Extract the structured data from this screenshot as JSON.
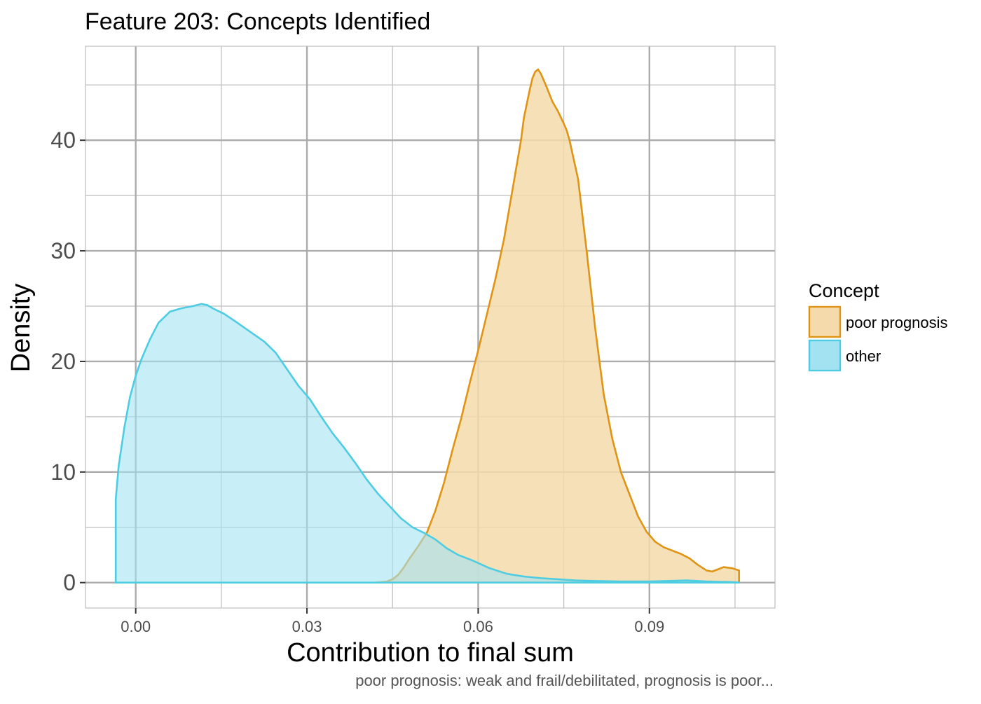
{
  "chart_data": {
    "type": "area",
    "title": "Feature 203: Concepts Identified",
    "subtitle": "",
    "caption": "poor prognosis: weak and frail/debilitated, prognosis is poor...",
    "xlabel": "Contribution to final sum",
    "ylabel": "Density",
    "xlim": [
      -0.0088,
      0.112
    ],
    "ylim": [
      -2.3,
      48.5
    ],
    "x_ticks": [
      {
        "value": 0.0,
        "label": "0.00"
      },
      {
        "value": 0.03,
        "label": "0.03"
      },
      {
        "value": 0.06,
        "label": "0.06"
      },
      {
        "value": 0.09,
        "label": "0.09"
      }
    ],
    "x_minor_ticks": [
      0.015,
      0.045,
      0.075,
      0.105
    ],
    "y_ticks": [
      {
        "value": 0,
        "label": "0"
      },
      {
        "value": 10,
        "label": "10"
      },
      {
        "value": 20,
        "label": "20"
      },
      {
        "value": 30,
        "label": "30"
      },
      {
        "value": 40,
        "label": "40"
      }
    ],
    "y_minor_ticks": [
      5,
      15,
      25,
      35,
      45
    ],
    "grid": true,
    "legend": {
      "title": "Concept",
      "position": "right"
    },
    "series": [
      {
        "name": "poor prognosis",
        "line_color": "#E09415",
        "fill_color": "#F5DBAB",
        "fill_opacity": 0.85,
        "points": [
          [
            0.042,
            0.0
          ],
          [
            0.044,
            0.1
          ],
          [
            0.045,
            0.3
          ],
          [
            0.046,
            0.7
          ],
          [
            0.047,
            1.4
          ],
          [
            0.048,
            2.2
          ],
          [
            0.0495,
            3.3
          ],
          [
            0.051,
            4.5
          ],
          [
            0.0525,
            6.5
          ],
          [
            0.054,
            9.0
          ],
          [
            0.0555,
            12.0
          ],
          [
            0.057,
            14.8
          ],
          [
            0.0585,
            18.0
          ],
          [
            0.06,
            21.0
          ],
          [
            0.0615,
            24.2
          ],
          [
            0.063,
            27.4
          ],
          [
            0.0645,
            31.0
          ],
          [
            0.066,
            35.5
          ],
          [
            0.0675,
            40.0
          ],
          [
            0.068,
            42.0
          ],
          [
            0.069,
            44.5
          ],
          [
            0.0695,
            45.6
          ],
          [
            0.07,
            46.2
          ],
          [
            0.0705,
            46.4
          ],
          [
            0.071,
            46.0
          ],
          [
            0.072,
            44.8
          ],
          [
            0.073,
            43.5
          ],
          [
            0.074,
            42.6
          ],
          [
            0.075,
            41.5
          ],
          [
            0.0755,
            40.9
          ],
          [
            0.076,
            40.0
          ],
          [
            0.0775,
            36.5
          ],
          [
            0.079,
            30.0
          ],
          [
            0.0805,
            23.0
          ],
          [
            0.082,
            17.0
          ],
          [
            0.0835,
            13.0
          ],
          [
            0.085,
            10.0
          ],
          [
            0.0865,
            8.0
          ],
          [
            0.088,
            6.0
          ],
          [
            0.0895,
            4.6
          ],
          [
            0.091,
            3.7
          ],
          [
            0.0925,
            3.2
          ],
          [
            0.094,
            2.9
          ],
          [
            0.0955,
            2.6
          ],
          [
            0.097,
            2.2
          ],
          [
            0.0985,
            1.6
          ],
          [
            0.1,
            1.1
          ],
          [
            0.101,
            1.0
          ],
          [
            0.102,
            1.2
          ],
          [
            0.103,
            1.4
          ],
          [
            0.1045,
            1.3
          ],
          [
            0.1057,
            1.1
          ],
          [
            0.1057,
            0.0
          ]
        ]
      },
      {
        "name": "other",
        "line_color": "#4ECDE2",
        "fill_color": "#A3E3F1",
        "fill_opacity": 0.6,
        "points": [
          [
            -0.0035,
            0.0
          ],
          [
            -0.0035,
            7.5
          ],
          [
            -0.003,
            10.5
          ],
          [
            -0.002,
            14.0
          ],
          [
            -0.001,
            16.8
          ],
          [
            0.0,
            18.7
          ],
          [
            0.001,
            20.2
          ],
          [
            0.0025,
            22.0
          ],
          [
            0.004,
            23.5
          ],
          [
            0.006,
            24.5
          ],
          [
            0.008,
            24.8
          ],
          [
            0.01,
            25.0
          ],
          [
            0.0115,
            25.2
          ],
          [
            0.0125,
            25.1
          ],
          [
            0.0135,
            24.8
          ],
          [
            0.0155,
            24.3
          ],
          [
            0.0175,
            23.6
          ],
          [
            0.02,
            22.7
          ],
          [
            0.0225,
            21.8
          ],
          [
            0.0245,
            20.8
          ],
          [
            0.0265,
            19.3
          ],
          [
            0.0285,
            17.8
          ],
          [
            0.0305,
            16.6
          ],
          [
            0.0325,
            15.0
          ],
          [
            0.0345,
            13.5
          ],
          [
            0.0365,
            12.2
          ],
          [
            0.0385,
            10.8
          ],
          [
            0.0405,
            9.3
          ],
          [
            0.0425,
            8.0
          ],
          [
            0.0445,
            6.9
          ],
          [
            0.0465,
            5.8
          ],
          [
            0.0485,
            5.0
          ],
          [
            0.0505,
            4.5
          ],
          [
            0.0525,
            3.9
          ],
          [
            0.0545,
            3.1
          ],
          [
            0.0565,
            2.5
          ],
          [
            0.059,
            2.0
          ],
          [
            0.062,
            1.3
          ],
          [
            0.065,
            0.8
          ],
          [
            0.068,
            0.55
          ],
          [
            0.071,
            0.4
          ],
          [
            0.074,
            0.3
          ],
          [
            0.077,
            0.2
          ],
          [
            0.08,
            0.15
          ],
          [
            0.085,
            0.1
          ],
          [
            0.09,
            0.1
          ],
          [
            0.0935,
            0.15
          ],
          [
            0.0965,
            0.2
          ],
          [
            0.1,
            0.1
          ],
          [
            0.1045,
            0.05
          ],
          [
            0.1057,
            0.0
          ]
        ]
      }
    ]
  }
}
